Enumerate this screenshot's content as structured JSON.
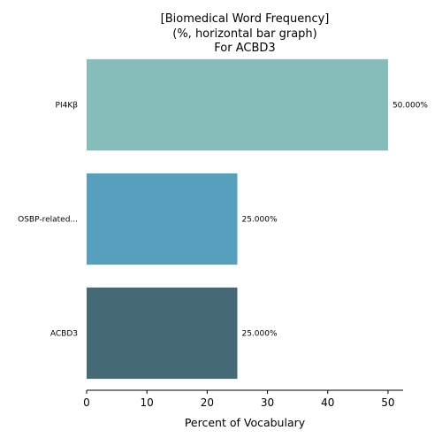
{
  "chart_data": {
    "type": "bar",
    "orientation": "horizontal",
    "title_lines": [
      "[Biomedical Word Frequency]",
      "(%, horizontal bar graph)",
      "For ACBD3"
    ],
    "categories": [
      "PI4Kβ",
      "OSBP-related...",
      "ACBD3"
    ],
    "values": [
      50.0,
      25.0,
      25.0
    ],
    "value_labels": [
      "50.000%",
      "25.000%",
      "25.000%"
    ],
    "bar_colors": [
      "#86BCBA",
      "#56A0BE",
      "#456976"
    ],
    "xlabel": "Percent of Vocabulary",
    "ylabel": "",
    "xlim": [
      0,
      52.5
    ],
    "xticks": [
      0,
      10,
      20,
      30,
      40,
      50
    ],
    "xtick_labels": [
      "0",
      "10",
      "20",
      "30",
      "40",
      "50"
    ],
    "grid": false,
    "legend": "none"
  }
}
